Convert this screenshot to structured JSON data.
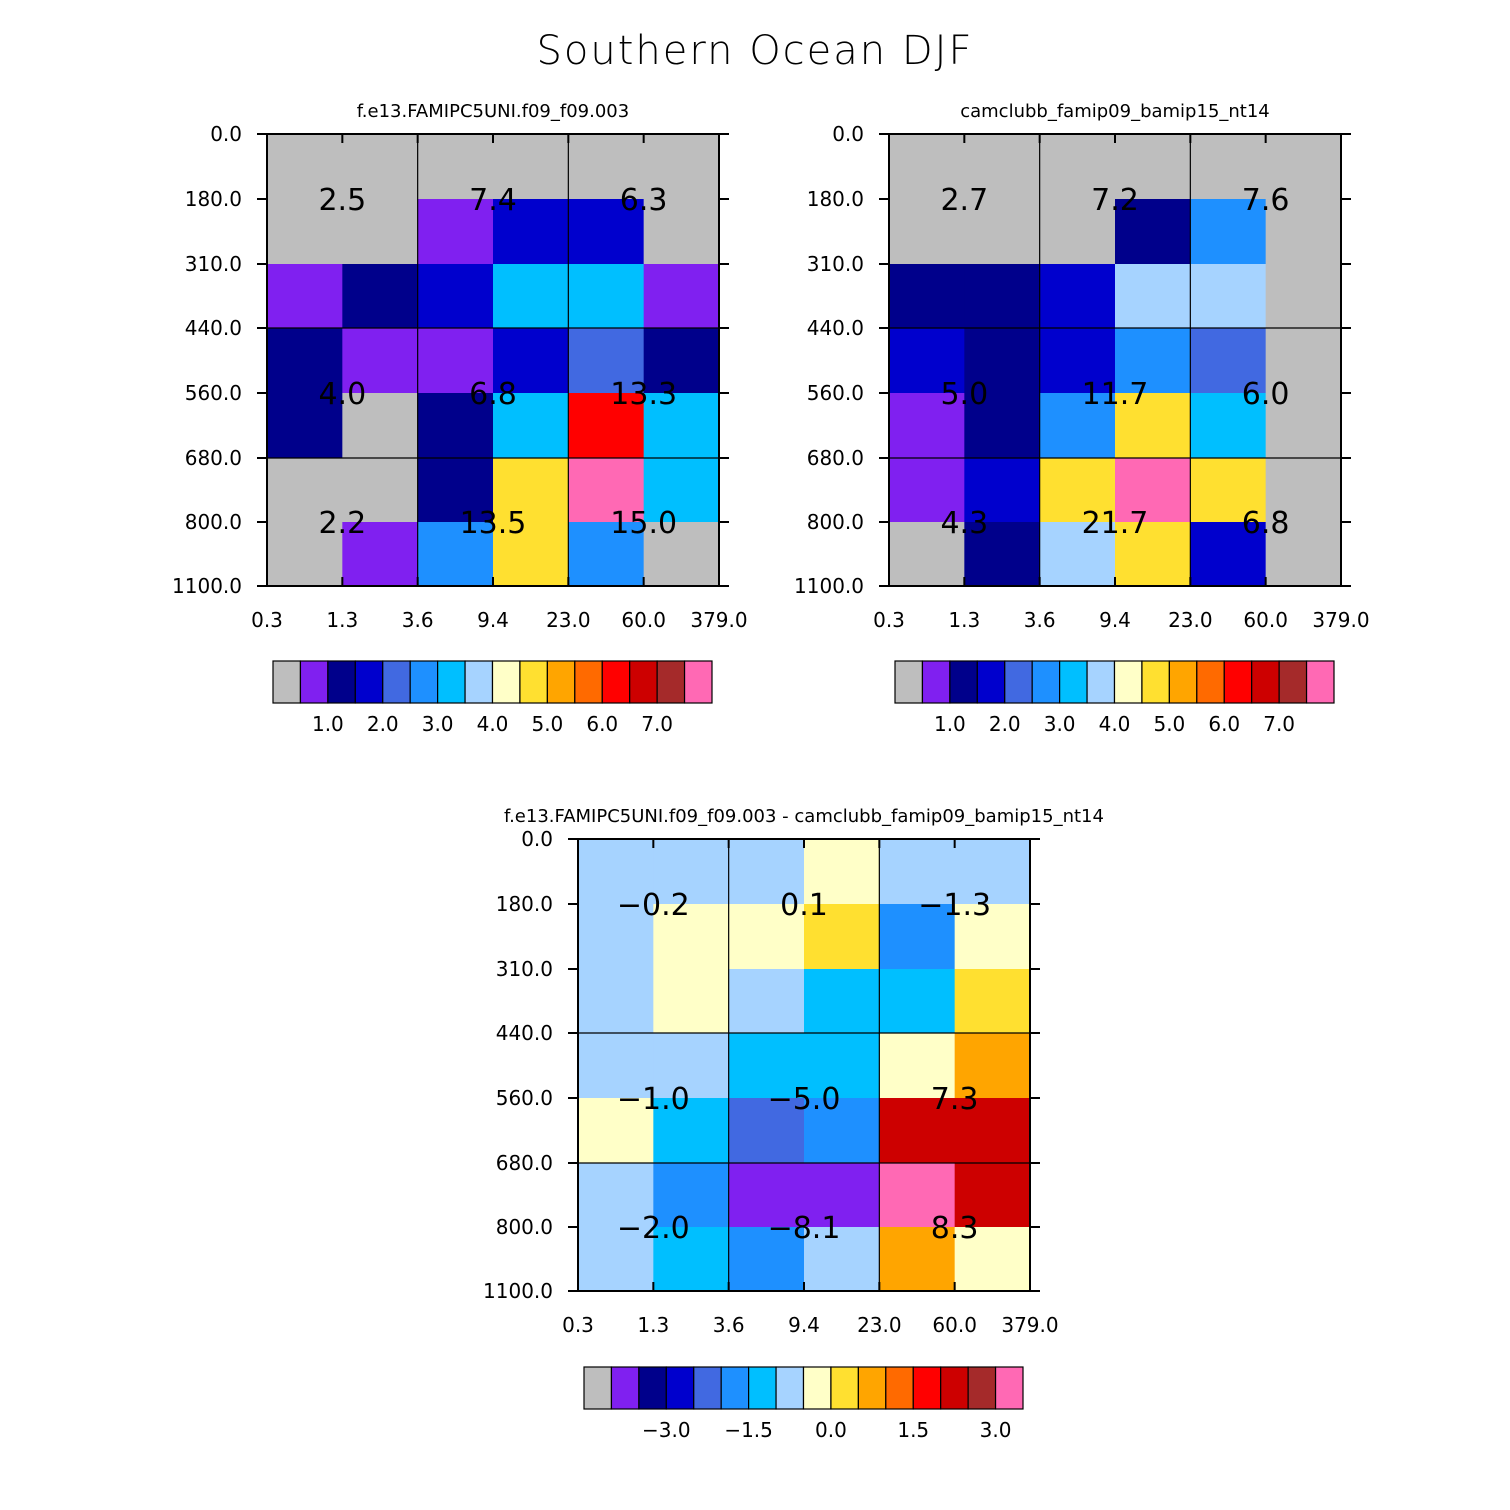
{
  "title": "Southern Ocean DJF",
  "palette": [
    "#bebebe",
    "#8020f0",
    "#00008b",
    "#0000cd",
    "#4169e1",
    "#1e90ff",
    "#00bfff",
    "#a6d3ff",
    "#ffffc8",
    "#ffe030",
    "#ffa500",
    "#ff6a00",
    "#ff0000",
    "#cd0000",
    "#a52a2a",
    "#ff69b4"
  ],
  "chart_data": [
    {
      "type": "heatmap",
      "title": "f.e13.FAMIPC5UNI.f09_f09.003",
      "x_ticks": [
        "0.3",
        "1.3",
        "3.6",
        "9.4",
        "23.0",
        "60.0",
        "379.0"
      ],
      "y_ticks": [
        "0.0",
        "180.0",
        "310.0",
        "440.0",
        "560.0",
        "680.0",
        "800.0",
        "1100.0"
      ],
      "cell_color_index": [
        [
          0,
          0,
          0,
          0,
          0,
          0
        ],
        [
          0,
          0,
          1,
          3,
          3,
          0
        ],
        [
          1,
          2,
          3,
          6,
          6,
          1
        ],
        [
          2,
          1,
          1,
          3,
          4,
          2
        ],
        [
          2,
          0,
          2,
          6,
          12,
          6
        ],
        [
          0,
          0,
          2,
          9,
          15,
          6
        ],
        [
          0,
          1,
          5,
          9,
          5,
          0
        ]
      ],
      "block_labels": [
        [
          "2.5",
          "7.4",
          "6.3"
        ],
        [
          "4.0",
          "6.8",
          "13.3"
        ],
        [
          "2.2",
          "13.5",
          "15.0"
        ]
      ],
      "colorbar_labels": [
        "1.0",
        "2.0",
        "3.0",
        "4.0",
        "5.0",
        "6.0",
        "7.0"
      ]
    },
    {
      "type": "heatmap",
      "title": "camclubb_famip09_bamip15_nt14",
      "x_ticks": [
        "0.3",
        "1.3",
        "3.6",
        "9.4",
        "23.0",
        "60.0",
        "379.0"
      ],
      "y_ticks": [
        "0.0",
        "180.0",
        "310.0",
        "440.0",
        "560.0",
        "680.0",
        "800.0",
        "1100.0"
      ],
      "cell_color_index": [
        [
          0,
          0,
          0,
          0,
          0,
          0
        ],
        [
          0,
          0,
          0,
          2,
          5,
          0
        ],
        [
          2,
          2,
          3,
          7,
          7,
          0
        ],
        [
          3,
          2,
          3,
          5,
          4,
          0
        ],
        [
          1,
          2,
          5,
          9,
          6,
          0
        ],
        [
          1,
          3,
          9,
          15,
          9,
          0
        ],
        [
          0,
          2,
          7,
          9,
          3,
          0
        ]
      ],
      "block_labels": [
        [
          "2.7",
          "7.2",
          "7.6"
        ],
        [
          "5.0",
          "11.7",
          "6.0"
        ],
        [
          "4.3",
          "21.7",
          "6.8"
        ]
      ],
      "colorbar_labels": [
        "1.0",
        "2.0",
        "3.0",
        "4.0",
        "5.0",
        "6.0",
        "7.0"
      ]
    },
    {
      "type": "heatmap",
      "title": "f.e13.FAMIPC5UNI.f09_f09.003 - camclubb_famip09_bamip15_nt14",
      "x_ticks": [
        "0.3",
        "1.3",
        "3.6",
        "9.4",
        "23.0",
        "60.0",
        "379.0"
      ],
      "y_ticks": [
        "0.0",
        "180.0",
        "310.0",
        "440.0",
        "560.0",
        "680.0",
        "800.0",
        "1100.0"
      ],
      "cell_color_index": [
        [
          7,
          7,
          7,
          8,
          7,
          7
        ],
        [
          7,
          8,
          8,
          9,
          5,
          8
        ],
        [
          7,
          8,
          7,
          6,
          6,
          9
        ],
        [
          7,
          7,
          6,
          6,
          8,
          10
        ],
        [
          8,
          6,
          4,
          5,
          13,
          13
        ],
        [
          7,
          5,
          1,
          1,
          15,
          13
        ],
        [
          7,
          6,
          5,
          7,
          10,
          8
        ]
      ],
      "block_labels": [
        [
          "-0.2",
          "0.1",
          "-1.3"
        ],
        [
          "-1.0",
          "-5.0",
          "7.3"
        ],
        [
          "-2.0",
          "-8.1",
          "8.3"
        ]
      ],
      "colorbar_labels": [
        "-3.0",
        "-1.5",
        "0.0",
        "1.5",
        "3.0"
      ]
    }
  ]
}
